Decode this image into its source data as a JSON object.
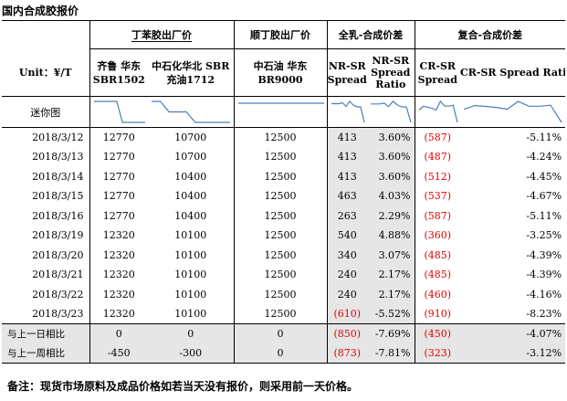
{
  "title": "国内合成胶报价",
  "unit_label": "Unit：¥/T",
  "groups": {
    "sbr": "丁苯胶出厂价",
    "br": "顺丁胶出厂价",
    "nr": "全乳-合成价差",
    "cr": "复合-合成价差"
  },
  "columns": {
    "c1_l1": "齐鲁 华东",
    "c1_l2": "SBR1502",
    "c2_l1": "中石化华北 SBR",
    "c2_l2": "充油1712",
    "c3_l1": "中石油 华东",
    "c3_l2": "BR9000",
    "c4_l1": "NR-SR",
    "c4_l2": "Spread",
    "c5_l1": "NR-SR",
    "c5_l2": "Spread",
    "c5_l3": "Ratio",
    "c6_l1": "CR-SR",
    "c6_l2": "Spread",
    "c7": "CR-SR Spread Ratio"
  },
  "mini_label": "迷你图",
  "rows": [
    {
      "date": "2018/3/12",
      "sbr1502": "12770",
      "sbr1712": "10700",
      "br9000": "12500",
      "nr_spread": "413",
      "nr_ratio": "3.60%",
      "cr_spread": "(587)",
      "cr_ratio": "-5.11%"
    },
    {
      "date": "2018/3/13",
      "sbr1502": "12770",
      "sbr1712": "10700",
      "br9000": "12500",
      "nr_spread": "413",
      "nr_ratio": "3.60%",
      "cr_spread": "(487)",
      "cr_ratio": "-4.24%"
    },
    {
      "date": "2018/3/14",
      "sbr1502": "12770",
      "sbr1712": "10400",
      "br9000": "12500",
      "nr_spread": "413",
      "nr_ratio": "3.60%",
      "cr_spread": "(512)",
      "cr_ratio": "-4.45%"
    },
    {
      "date": "2018/3/15",
      "sbr1502": "12770",
      "sbr1712": "10400",
      "br9000": "12500",
      "nr_spread": "463",
      "nr_ratio": "4.03%",
      "cr_spread": "(537)",
      "cr_ratio": "-4.67%"
    },
    {
      "date": "2018/3/16",
      "sbr1502": "12770",
      "sbr1712": "10400",
      "br9000": "12500",
      "nr_spread": "263",
      "nr_ratio": "2.29%",
      "cr_spread": "(587)",
      "cr_ratio": "-5.11%"
    },
    {
      "date": "2018/3/19",
      "sbr1502": "12320",
      "sbr1712": "10100",
      "br9000": "12500",
      "nr_spread": "540",
      "nr_ratio": "4.88%",
      "cr_spread": "(360)",
      "cr_ratio": "-3.25%"
    },
    {
      "date": "2018/3/20",
      "sbr1502": "12320",
      "sbr1712": "10100",
      "br9000": "12500",
      "nr_spread": "340",
      "nr_ratio": "3.07%",
      "cr_spread": "(485)",
      "cr_ratio": "-4.39%"
    },
    {
      "date": "2018/3/21",
      "sbr1502": "12320",
      "sbr1712": "10100",
      "br9000": "12500",
      "nr_spread": "240",
      "nr_ratio": "2.17%",
      "cr_spread": "(485)",
      "cr_ratio": "-4.39%"
    },
    {
      "date": "2018/3/22",
      "sbr1502": "12320",
      "sbr1712": "10100",
      "br9000": "12500",
      "nr_spread": "240",
      "nr_ratio": "2.17%",
      "cr_spread": "(460)",
      "cr_ratio": "-4.16%"
    },
    {
      "date": "2018/3/23",
      "sbr1502": "12320",
      "sbr1712": "10100",
      "br9000": "12500",
      "nr_spread": "(610)",
      "nr_ratio": "-5.52%",
      "cr_spread": "(910)",
      "cr_ratio": "-8.23%"
    }
  ],
  "compare": [
    {
      "label": "与上一日相比",
      "sbr1502": "0",
      "sbr1712": "0",
      "br9000": "0",
      "nr_spread": "(850)",
      "nr_ratio": "-7.69%",
      "cr_spread": "(450)",
      "cr_ratio": "-4.07%"
    },
    {
      "label": "与上一周相比",
      "sbr1502": "-450",
      "sbr1712": "-300",
      "br9000": "0",
      "nr_spread": "(873)",
      "nr_ratio": "-7.81%",
      "cr_spread": "(323)",
      "cr_ratio": "-3.12%"
    }
  ],
  "sparklines": {
    "sbr1502": [
      12770,
      12770,
      12770,
      12770,
      12770,
      12320,
      12320,
      12320,
      12320,
      12320
    ],
    "sbr1712": [
      10700,
      10700,
      10400,
      10400,
      10400,
      10100,
      10100,
      10100,
      10100,
      10100
    ],
    "br9000": [
      12500,
      12500,
      12500,
      12500,
      12500,
      12500,
      12500,
      12500,
      12500,
      12500
    ],
    "nr_spread": [
      413,
      413,
      413,
      463,
      263,
      540,
      340,
      240,
      240,
      -610
    ],
    "nr_ratio": [
      3.6,
      3.6,
      3.6,
      4.03,
      2.29,
      4.88,
      3.07,
      2.17,
      2.17,
      -5.52
    ],
    "cr_spread": [
      -587,
      -487,
      -512,
      -537,
      -587,
      -360,
      -485,
      -485,
      -460,
      -910
    ],
    "cr_ratio": [
      -5.11,
      -4.24,
      -4.45,
      -4.67,
      -5.11,
      -3.25,
      -4.39,
      -4.39,
      -4.16,
      -8.23
    ]
  },
  "footnote": "备注：现货市场原料及成品价格如若当天没有报价，则采用前一天价格。"
}
